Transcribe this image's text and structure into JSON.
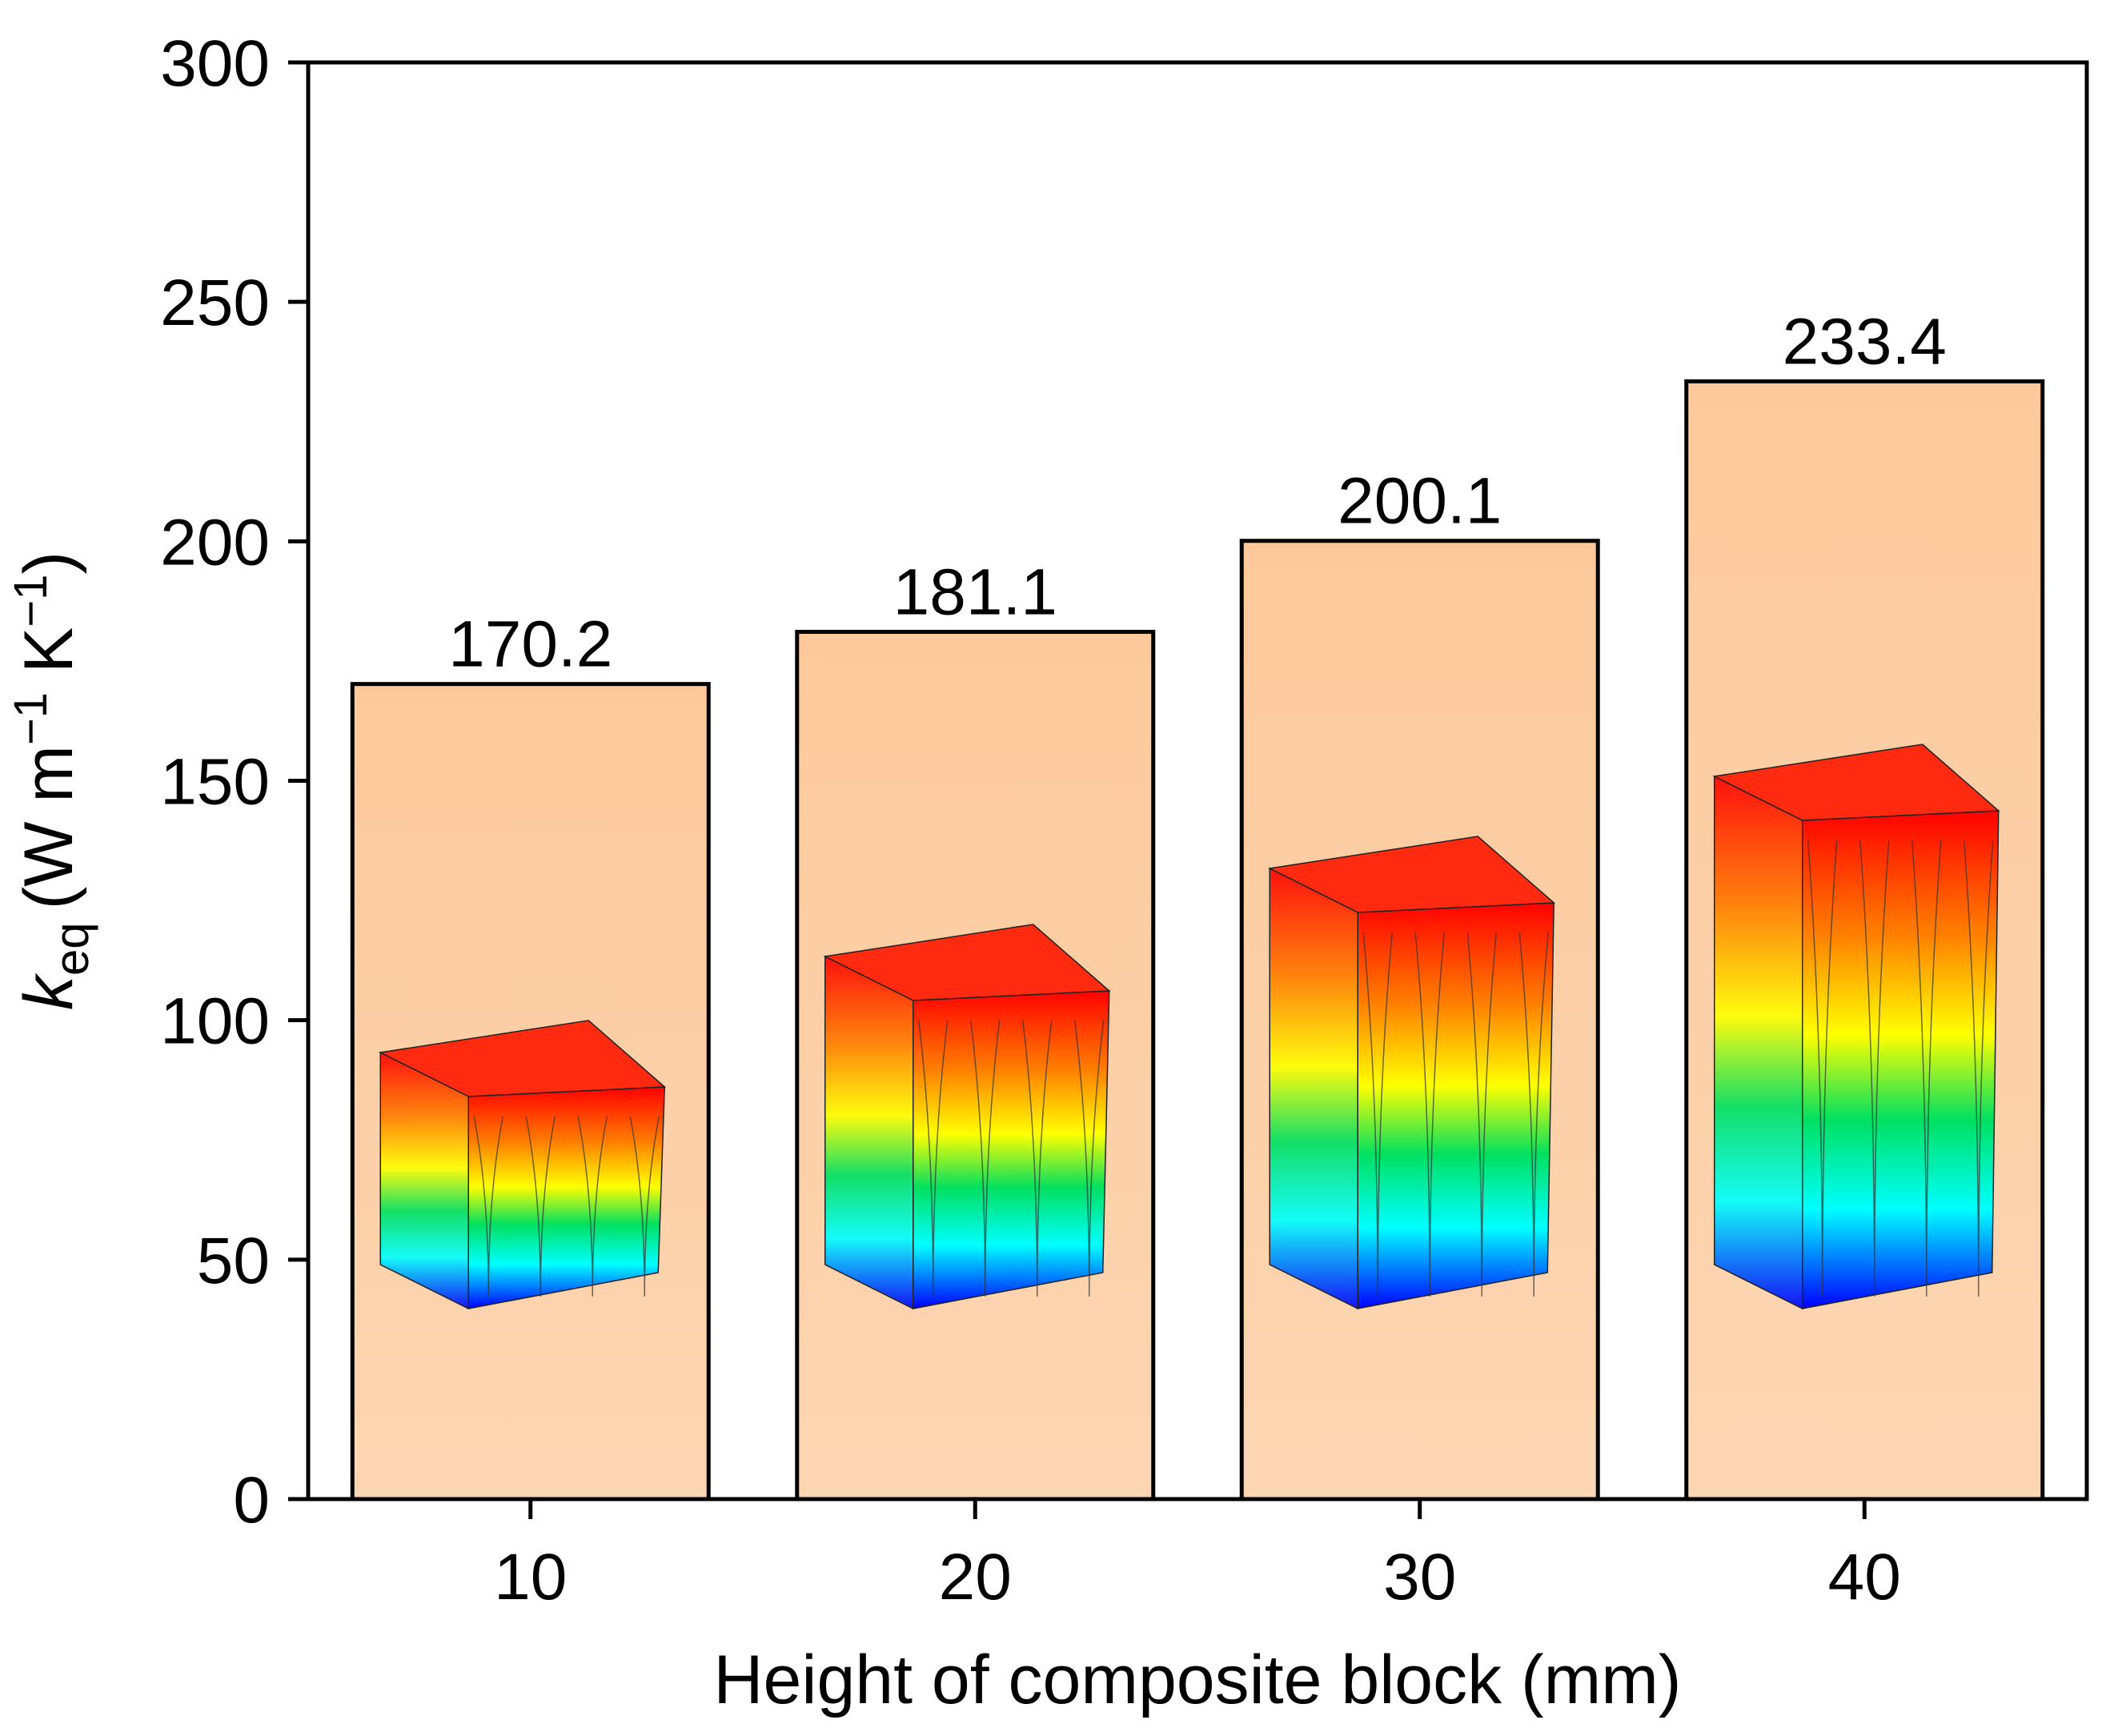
{
  "chart_data": {
    "type": "bar",
    "title": "",
    "categories": [
      "10",
      "20",
      "30",
      "40"
    ],
    "values": [
      170.2,
      181.1,
      200.1,
      233.4
    ],
    "value_labels": [
      "170.2",
      "181.1",
      "200.1",
      "233.4"
    ],
    "xlabel": "Height of composite block (mm)",
    "ylabel": {
      "symbol": "k",
      "subscript": "eq",
      "units_prefix": "(W m",
      "exp1": "−1",
      "units_mid": " K",
      "exp2": "−1",
      "units_suffix": ")"
    },
    "ylim": [
      0,
      300
    ],
    "yticks": [
      "0",
      "50",
      "100",
      "150",
      "200",
      "250",
      "300"
    ],
    "ytick_values": [
      0,
      50,
      100,
      150,
      200,
      250,
      300
    ],
    "grid": false,
    "legend": "none",
    "bar_color": "#fdc99b",
    "bar_edge_color": "#000000",
    "insets": [
      {
        "category": "10",
        "description": "temperature field block, height 10 mm"
      },
      {
        "category": "20",
        "description": "temperature field block, height 20 mm"
      },
      {
        "category": "30",
        "description": "temperature field block, height 30 mm"
      },
      {
        "category": "40",
        "description": "temperature field block, height 40 mm"
      }
    ],
    "colormap": [
      "#0000ff",
      "#00ffff",
      "#00e060",
      "#ffff00",
      "#ff8000",
      "#ff0000"
    ]
  }
}
